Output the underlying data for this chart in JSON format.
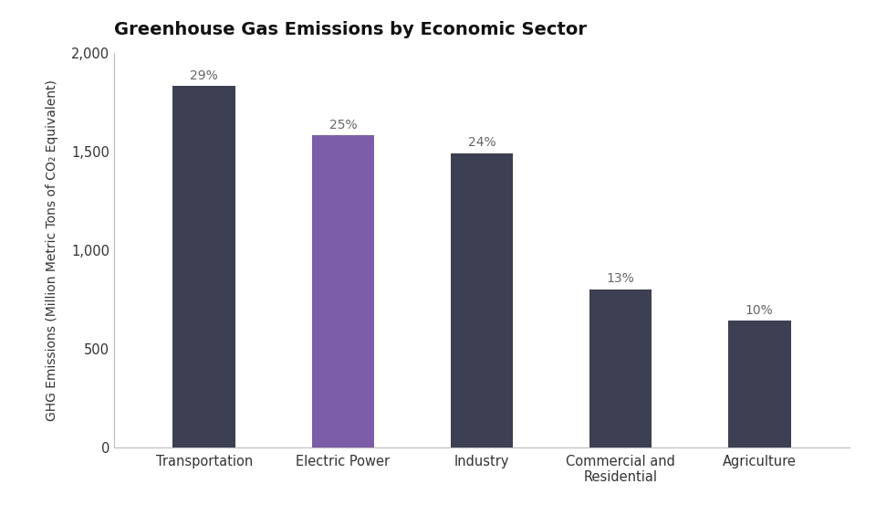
{
  "title": "Greenhouse Gas Emissions by Economic Sector",
  "ylabel": "GHG Emissions (Million Metric Tons of CO₂ Equivalent)",
  "categories": [
    "Transportation",
    "Electric Power",
    "Industry",
    "Commercial and\nResidential",
    "Agriculture"
  ],
  "values": [
    1830,
    1580,
    1490,
    800,
    640
  ],
  "percentages": [
    "29%",
    "25%",
    "24%",
    "13%",
    "10%"
  ],
  "bar_colors": [
    "#3d3f52",
    "#7b5ea7",
    "#3d3f52",
    "#3d3f52",
    "#3d3f52"
  ],
  "ylim": [
    0,
    2000
  ],
  "yticks": [
    0,
    500,
    1000,
    1500,
    2000
  ],
  "background_color": "#ffffff",
  "title_fontsize": 14,
  "label_fontsize": 10,
  "tick_fontsize": 10.5,
  "pct_fontsize": 10
}
